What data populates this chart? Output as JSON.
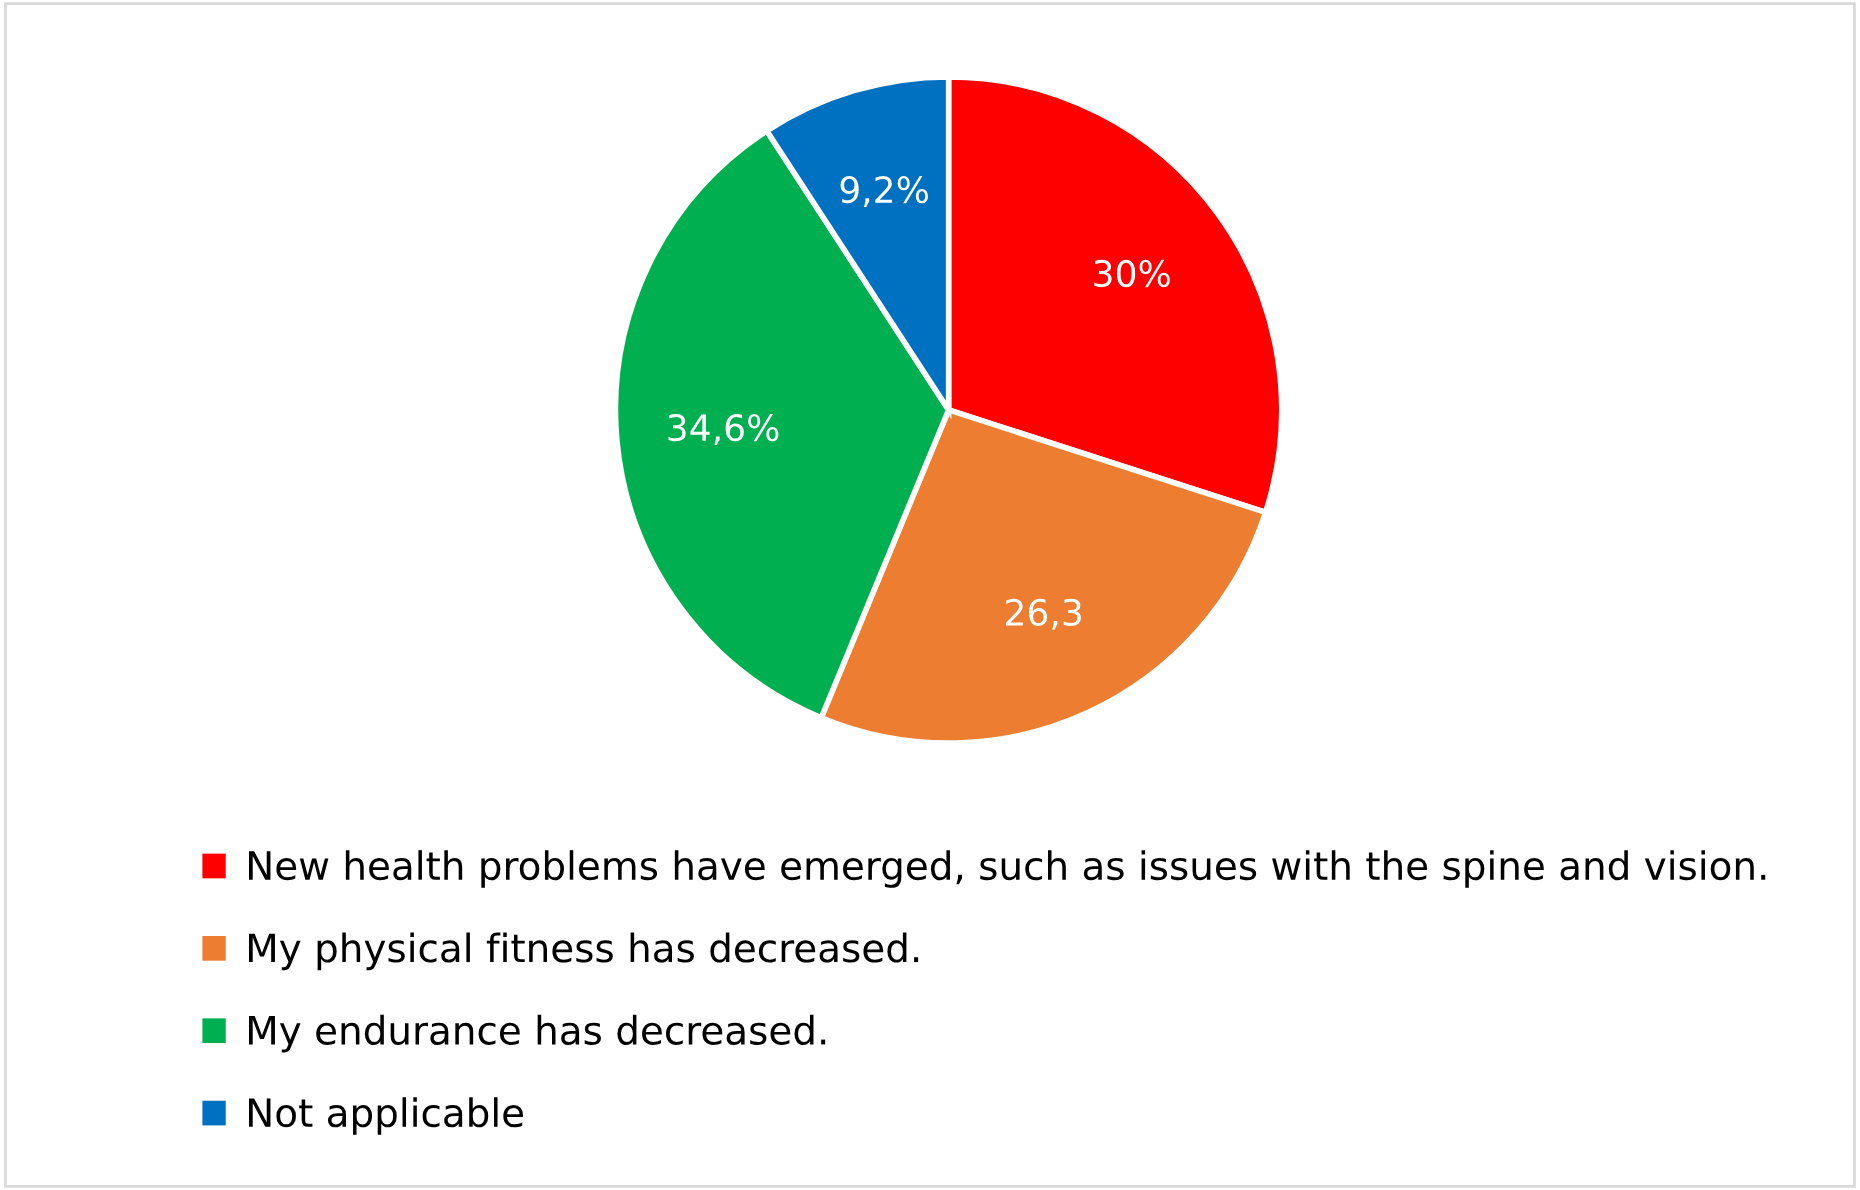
{
  "chart_data": {
    "type": "pie",
    "categories": [
      "New health problems have emerged, such as issues with the spine and vision.",
      "My physical fitness has decreased.",
      "My endurance has decreased.",
      "Not applicable"
    ],
    "values": [
      30,
      26.3,
      34.6,
      9.2
    ],
    "value_labels": [
      "30%",
      "26,3",
      "34,6%",
      "9,2%"
    ],
    "colors": [
      "#ff0000",
      "#ed7d31",
      "#00b050",
      "#0070c0"
    ],
    "legend": "bottom"
  }
}
